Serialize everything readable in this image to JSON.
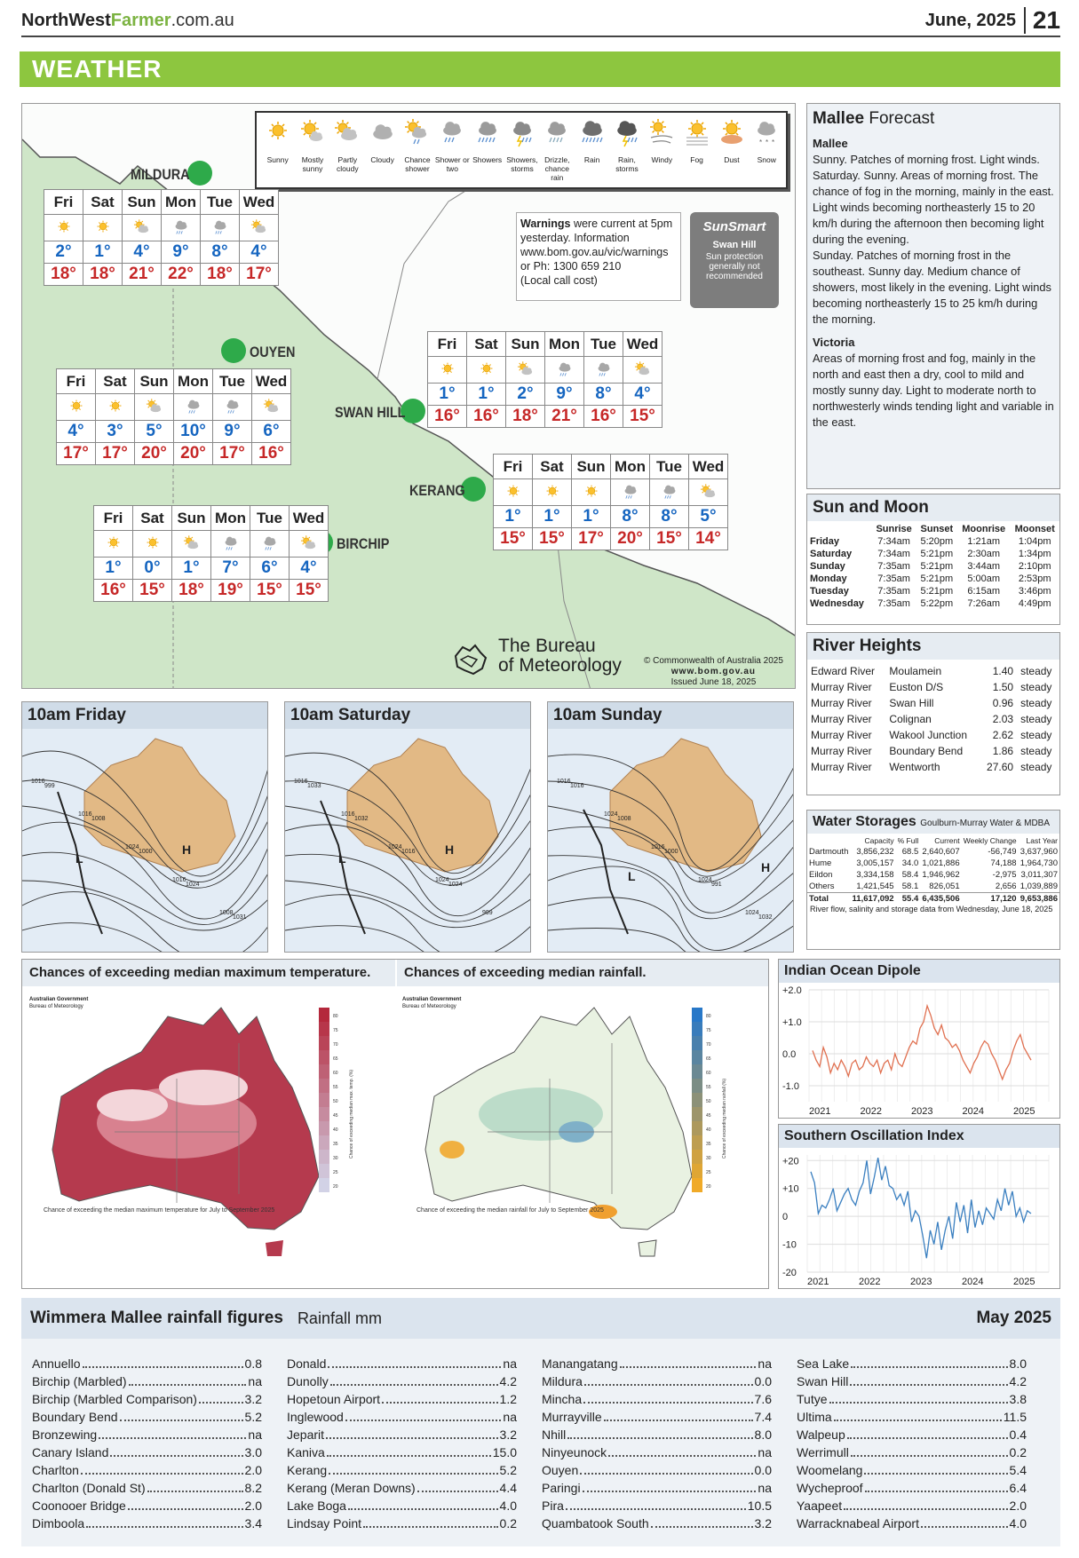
{
  "header": {
    "site_a": "NorthWest",
    "site_b": "Farmer",
    "site_c": ".com.au",
    "date": "June, 2025",
    "page": "21",
    "section": "WEATHER"
  },
  "legend": [
    {
      "label": "Sunny",
      "icon": "sun-icon"
    },
    {
      "label": "Mostly sunny",
      "icon": "mostly-sunny-icon"
    },
    {
      "label": "Partly cloudy",
      "icon": "partly-cloudy-icon"
    },
    {
      "label": "Cloudy",
      "icon": "cloud-icon"
    },
    {
      "label": "Chance shower",
      "icon": "chance-shower-icon"
    },
    {
      "label": "Shower or two",
      "icon": "shower-icon"
    },
    {
      "label": "Showers",
      "icon": "showers-icon"
    },
    {
      "label": "Showers, storms",
      "icon": "storm-shower-icon"
    },
    {
      "label": "Drizzle, chance rain",
      "icon": "drizzle-icon"
    },
    {
      "label": "Rain",
      "icon": "rain-icon"
    },
    {
      "label": "Rain, storms",
      "icon": "rain-storm-icon"
    },
    {
      "label": "Windy",
      "icon": "wind-icon"
    },
    {
      "label": "Fog",
      "icon": "fog-icon"
    },
    {
      "label": "Dust",
      "icon": "dust-icon"
    },
    {
      "label": "Snow",
      "icon": "snow-icon"
    }
  ],
  "towns": {
    "mildura": "MILDURA",
    "ouyen": "OUYEN",
    "swan_hill": "SWAN HILL",
    "kerang": "KERANG",
    "birchip": "BIRCHIP"
  },
  "days": [
    "Fri",
    "Sat",
    "Sun",
    "Mon",
    "Tue",
    "Wed"
  ],
  "forecasts": {
    "mildura": {
      "icons": [
        "sun-icon",
        "sun-icon",
        "partly-cloudy-icon",
        "shower-icon",
        "shower-icon",
        "partly-cloudy-icon"
      ],
      "min": [
        "2°",
        "1°",
        "4°",
        "9°",
        "8°",
        "4°"
      ],
      "max": [
        "18°",
        "18°",
        "21°",
        "22°",
        "18°",
        "17°"
      ]
    },
    "ouyen": {
      "icons": [
        "sun-icon",
        "sun-icon",
        "partly-cloudy-icon",
        "shower-icon",
        "shower-icon",
        "partly-cloudy-icon"
      ],
      "min": [
        "4°",
        "3°",
        "5°",
        "10°",
        "9°",
        "6°"
      ],
      "max": [
        "17°",
        "17°",
        "20°",
        "20°",
        "17°",
        "16°"
      ]
    },
    "swan_hill": {
      "icons": [
        "sun-icon",
        "sun-icon",
        "partly-cloudy-icon",
        "shower-icon",
        "shower-icon",
        "partly-cloudy-icon"
      ],
      "min": [
        "1°",
        "1°",
        "2°",
        "9°",
        "8°",
        "4°"
      ],
      "max": [
        "16°",
        "16°",
        "18°",
        "21°",
        "16°",
        "15°"
      ]
    },
    "kerang": {
      "icons": [
        "sun-icon",
        "sun-icon",
        "sun-icon",
        "shower-icon",
        "shower-icon",
        "partly-cloudy-icon"
      ],
      "min": [
        "1°",
        "1°",
        "1°",
        "8°",
        "8°",
        "5°"
      ],
      "max": [
        "15°",
        "15°",
        "17°",
        "20°",
        "15°",
        "14°"
      ]
    },
    "birchip": {
      "icons": [
        "sun-icon",
        "sun-icon",
        "partly-cloudy-icon",
        "shower-icon",
        "shower-icon",
        "partly-cloudy-icon"
      ],
      "min": [
        "1°",
        "0°",
        "1°",
        "7°",
        "6°",
        "4°"
      ],
      "max": [
        "16°",
        "15°",
        "18°",
        "19°",
        "15°",
        "15°"
      ]
    }
  },
  "warnings": {
    "bold": "Warnings",
    "text": " were current at 5pm yesterday.  Information www.bom.gov.au/vic/warnings or Ph: 1300 659 210",
    "note": "(Local call cost)"
  },
  "sunsmart": {
    "title": "SunSmart",
    "location": "Swan Hill",
    "message": "Sun protection generally not recommended"
  },
  "bom": {
    "line1": "The Bureau",
    "line2": "of Meteorology",
    "copyright": "© Commonwealth of Australia 2025",
    "url": "www.bom.gov.au",
    "issued": "Issued June 18, 2025"
  },
  "mallee": {
    "title_a": "Mallee",
    "title_b": "Forecast",
    "s1_title": "Mallee",
    "s1_text": "Sunny. Patches of morning frost. Light winds. Saturday. Sunny. Areas of morning frost. The chance of fog in the morning, mainly in the east. Light winds becoming northeasterly 15 to 20 km/h during the afternoon then becoming light during the evening.",
    "s1_text2": "Sunday. Patches of morning frost in the southeast. Sunny day. Medium chance of showers, most likely in the evening. Light winds becoming northeasterly 15 to 25 km/h during the morning.",
    "s2_title": "Victoria",
    "s2_text": "Areas of morning frost and fog, mainly in the north and east then a dry, cool to mild and mostly sunny day. Light to moderate north to northwesterly winds tending light and variable in the east."
  },
  "sun_moon": {
    "title": "Sun and Moon",
    "headers": [
      "",
      "Sunrise",
      "Sunset",
      "Moonrise",
      "Moonset"
    ],
    "rows": [
      [
        "Friday",
        "7:34am",
        "5:20pm",
        "1:21am",
        "1:04pm"
      ],
      [
        "Saturday",
        "7:34am",
        "5:21pm",
        "2:30am",
        "1:34pm"
      ],
      [
        "Sunday",
        "7:35am",
        "5:21pm",
        "3:44am",
        "2:10pm"
      ],
      [
        "Monday",
        "7:35am",
        "5:21pm",
        "5:00am",
        "2:53pm"
      ],
      [
        "Tuesday",
        "7:35am",
        "5:21pm",
        "6:15am",
        "3:46pm"
      ],
      [
        "Wednesday",
        "7:35am",
        "5:22pm",
        "7:26am",
        "4:49pm"
      ]
    ]
  },
  "river": {
    "title": "River Heights",
    "rows": [
      [
        "Edward River",
        "Moulamein",
        "1.40",
        "steady"
      ],
      [
        "Murray River",
        "Euston D/S",
        "1.50",
        "steady"
      ],
      [
        "Murray River",
        "Swan Hill",
        "0.96",
        "steady"
      ],
      [
        "Murray River",
        "Colignan",
        "2.03",
        "steady"
      ],
      [
        "Murray River",
        "Wakool Junction",
        "2.62",
        "steady"
      ],
      [
        "Murray River",
        "Boundary Bend",
        "1.86",
        "steady"
      ],
      [
        "Murray River",
        "Wentworth",
        "27.60",
        "steady"
      ]
    ]
  },
  "water": {
    "title": "Water Storages",
    "source": "Goulburn-Murray Water & MDBA",
    "headers": [
      "",
      "Capacity",
      "% Full",
      "Current",
      "Weekly Change",
      "Last Year"
    ],
    "rows": [
      [
        "Dartmouth",
        "3,856,232",
        "68.5",
        "2,640,607",
        "-56,749",
        "3,637,960"
      ],
      [
        "Hume",
        "3,005,157",
        "34.0",
        "1,021,886",
        "74,188",
        "1,964,730"
      ],
      [
        "Eildon",
        "3,334,158",
        "58.4",
        "1,946,962",
        "-2,975",
        "3,011,307"
      ],
      [
        "Others",
        "1,421,545",
        "58.1",
        "826,051",
        "2,656",
        "1,039,889"
      ]
    ],
    "total": [
      "Total",
      "11,617,092",
      "55.4",
      "6,435,506",
      "17,120",
      "9,653,886"
    ],
    "note": "River flow, salinity and storage data from Wednesday, June 18, 2025"
  },
  "synoptic": [
    {
      "title": "10am Friday",
      "labels": [
        "1016",
        "1016",
        "1024",
        "1016",
        "1008",
        "999",
        "1008",
        "1000",
        "1024",
        "1031"
      ],
      "highs": [
        "H"
      ],
      "lows": [
        "L"
      ]
    },
    {
      "title": "10am Saturday",
      "labels": [
        "1016",
        "1016",
        "1024",
        "1024",
        "999",
        "1033",
        "1032",
        "1016",
        "1024"
      ],
      "highs": [
        "H"
      ],
      "lows": [
        "L"
      ]
    },
    {
      "title": "10am Sunday",
      "labels": [
        "1016",
        "1024",
        "1016",
        "1024",
        "1024",
        "1016",
        "1008",
        "1000",
        "991",
        "1032"
      ],
      "highs": [
        "H"
      ],
      "lows": [
        "L"
      ]
    }
  ],
  "outlook": {
    "temp_title": "Chances of exceeding median maximum temperature.",
    "rain_title": "Chances of exceeding median rainfall.",
    "temp_caption": "Chance of exceeding the median maximum temperature for July to September 2025",
    "rain_caption": "Chance of exceeding the median rainfall for July to September 2025",
    "gov": "Australian Government",
    "gov2": "Bureau of Meteorology",
    "scale": [
      "80",
      "75",
      "70",
      "65",
      "60",
      "55",
      "50",
      "45",
      "40",
      "35",
      "30",
      "25",
      "20"
    ],
    "temp_axis": "Chance of exceeding median max. temp. (%)",
    "rain_axis": "Chance of exceeding median rainfall (%)"
  },
  "iod": {
    "title": "Indian Ocean Dipole",
    "colors": {
      "line": "#e07050"
    },
    "chart_data": {
      "type": "line",
      "x_ticks": [
        "2021",
        "2022",
        "2023",
        "2024",
        "2025"
      ],
      "y_ticks": [
        "+2.0",
        "+1.0",
        "0.0",
        "-1.0"
      ],
      "ylim": [
        -1.5,
        2.0
      ],
      "values": [
        0.1,
        -0.2,
        -0.4,
        0.2,
        -0.1,
        -0.6,
        -0.3,
        -0.5,
        -0.2,
        -0.4,
        -0.7,
        -0.3,
        -0.2,
        -0.5,
        -0.4,
        -0.1,
        -0.3,
        -0.4,
        -0.2,
        -0.6,
        -0.3,
        -0.2,
        -0.5,
        0.0,
        -0.3,
        -0.4,
        -0.1,
        0.2,
        0.4,
        0.3,
        0.8,
        1.0,
        1.5,
        1.2,
        0.8,
        0.6,
        0.9,
        0.5,
        0.4,
        0.2,
        0.3,
        0.1,
        -0.2,
        -0.4,
        -0.6,
        -0.3,
        -0.1,
        0.2,
        0.4,
        0.3,
        0.0,
        -0.2,
        -0.5,
        -0.8,
        -0.5,
        -0.3,
        0.1,
        0.4,
        0.6,
        0.2,
        0.0,
        -0.2
      ]
    }
  },
  "soi": {
    "title": "Southern Oscillation Index",
    "colors": {
      "line": "#3a7fc0"
    },
    "chart_data": {
      "type": "line",
      "x_ticks": [
        "2021",
        "2022",
        "2023",
        "2024",
        "2025"
      ],
      "y_ticks": [
        "+20",
        "+10",
        "0",
        "-10",
        "-20"
      ],
      "ylim": [
        -20,
        22
      ],
      "values": [
        16,
        12,
        1,
        4,
        3,
        6,
        10,
        2,
        5,
        8,
        10,
        6,
        4,
        9,
        12,
        20,
        8,
        14,
        21,
        13,
        18,
        11,
        10,
        6,
        8,
        4,
        9,
        -2,
        2,
        0,
        -7,
        -15,
        -5,
        -10,
        -2,
        -12,
        -5,
        0,
        -8,
        5,
        -2,
        4,
        -6,
        6,
        -4,
        2,
        -3,
        3,
        1,
        -1,
        6,
        2,
        10,
        4,
        9,
        0,
        3,
        -2,
        2,
        1
      ]
    }
  },
  "rainfall": {
    "title": "Wimmera Mallee rainfall figures",
    "unit": "Rainfall mm",
    "month": "May 2025",
    "columns": [
      [
        [
          "Annuello",
          "0.8"
        ],
        [
          "Birchip (Marbled)",
          "na"
        ],
        [
          "Birchip (Marbled Comparison)",
          "3.2"
        ],
        [
          "Boundary Bend",
          "5.2"
        ],
        [
          "Bronzewing",
          "na"
        ],
        [
          "Canary Island",
          "3.0"
        ],
        [
          "Charlton",
          "2.0"
        ],
        [
          "Charlton (Donald St)",
          "8.2"
        ],
        [
          "Coonooer Bridge",
          "2.0"
        ],
        [
          "Dimboola",
          "3.4"
        ]
      ],
      [
        [
          "Donald",
          "na"
        ],
        [
          "Dunolly",
          "4.2"
        ],
        [
          "Hopetoun Airport",
          "1.2"
        ],
        [
          "Inglewood",
          "na"
        ],
        [
          "Jeparit",
          "3.2"
        ],
        [
          "Kaniva",
          "15.0"
        ],
        [
          "Kerang",
          "5.2"
        ],
        [
          "Kerang (Meran Downs)",
          "4.4"
        ],
        [
          "Lake Boga",
          "4.0"
        ],
        [
          "Lindsay Point",
          "0.2"
        ]
      ],
      [
        [
          "Manangatang",
          "na"
        ],
        [
          "Mildura",
          "0.0"
        ],
        [
          "Mincha",
          "7.6"
        ],
        [
          "Murrayville",
          "7.4"
        ],
        [
          "Nhill",
          "8.0"
        ],
        [
          "Ninyeunock",
          "na"
        ],
        [
          "Ouyen",
          "0.0"
        ],
        [
          "Paringi",
          "na"
        ],
        [
          "Pira",
          "10.5"
        ],
        [
          "Quambatook South",
          "3.2"
        ]
      ],
      [
        [
          "Sea Lake",
          "8.0"
        ],
        [
          "Swan Hill",
          "4.2"
        ],
        [
          "Tutye",
          "3.8"
        ],
        [
          "Ultima",
          "11.5"
        ],
        [
          "Walpeup",
          "0.4"
        ],
        [
          "Werrimull",
          "0.2"
        ],
        [
          "Woomelang",
          "5.4"
        ],
        [
          "Wycheproof",
          "6.4"
        ],
        [
          "Yaapeet",
          "2.0"
        ],
        [
          "Warracknabeal Airport",
          "4.0"
        ]
      ]
    ]
  }
}
